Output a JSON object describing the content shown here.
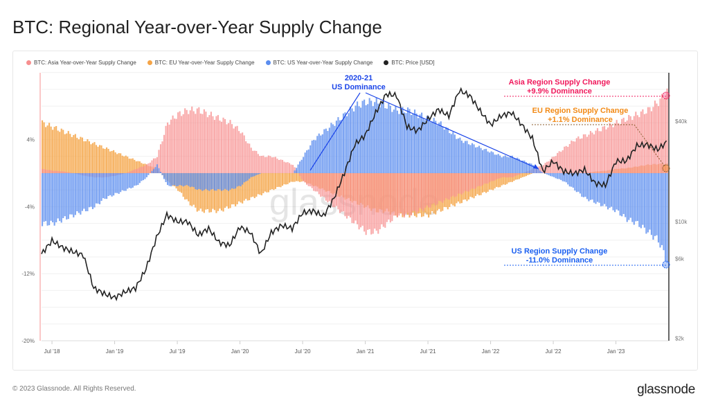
{
  "title": "BTC: Regional Year-over-Year Supply Change",
  "footer": "© 2023 Glassnode. All Rights Reserved.",
  "logo": "glassnode",
  "watermark": "glassnode",
  "legend": [
    {
      "label": "BTC: Asia Year-over-Year Supply Change",
      "color": "#f78f8f"
    },
    {
      "label": "BTC: EU Year-over-Year Supply Change",
      "color": "#f5a447"
    },
    {
      "label": "BTC: US Year-over-Year Supply Change",
      "color": "#5b8def"
    },
    {
      "label": "BTC: Price [USD]",
      "color": "#222222"
    }
  ],
  "annotations": {
    "us_dominance": {
      "line1": "2020-21",
      "line2": "US Dominance",
      "color": "#1a44e8"
    },
    "asia": {
      "line1": "Asia Region Supply Change",
      "line2": "+9.9% Dominance",
      "color": "#f0195c"
    },
    "eu": {
      "line1": "EU Region Supply Change",
      "line2": "+1.1% Dominance",
      "color": "#f28a16"
    },
    "us": {
      "line1": "US Region Supply Change",
      "line2": "-11.0% Dominance",
      "color": "#1a5ff0"
    }
  },
  "chart_data": {
    "type": "bar",
    "x_start": "2018-06",
    "x_step": "month",
    "x_ticks": [
      "Jul '18",
      "Jan '19",
      "Jul '19",
      "Jan '20",
      "Jul '20",
      "Jan '21",
      "Jul '21",
      "Jan '22",
      "Jul '22",
      "Jan '23"
    ],
    "y_left": {
      "ticks": [
        "4%",
        "-4%",
        "-12%",
        "-20%"
      ],
      "tick_values": [
        4,
        -4,
        -12,
        -20
      ],
      "range": [
        -20,
        12
      ],
      "unit": "%"
    },
    "y_right": {
      "ticks": [
        "$40k",
        "$10k",
        "$6k",
        "$2k"
      ],
      "tick_values": [
        40000,
        10000,
        6000,
        2000
      ],
      "scale": "log",
      "range": [
        2000,
        90000
      ]
    },
    "grid": true,
    "legend_placement": "top-left",
    "series": [
      {
        "name": "BTC: Asia Year-over-Year Supply Change",
        "axis": "left",
        "color": "#f78f8f",
        "values": [
          0.5,
          0.3,
          0.2,
          0,
          -0.3,
          -0.5,
          -0.5,
          -0.3,
          0,
          0.5,
          1,
          2,
          6,
          7,
          7.5,
          7.5,
          7,
          6.5,
          6,
          5,
          3,
          2,
          2,
          1.5,
          1,
          -1,
          -2,
          -3,
          -4,
          -5,
          -6,
          -7,
          -7,
          -6,
          -5,
          -5,
          -4.5,
          -4,
          -3.5,
          -3,
          -2.5,
          -2,
          -1.5,
          -1,
          -0.5,
          -0.5,
          0,
          0.5,
          1,
          2,
          3,
          4,
          4.5,
          5,
          5.5,
          6,
          6.5,
          7,
          7.5,
          8.5,
          9.9
        ]
      },
      {
        "name": "BTC: EU Year-over-Year Supply Change",
        "axis": "left",
        "color": "#f5a447",
        "values": [
          6,
          5.5,
          5,
          4.5,
          4,
          3.5,
          3,
          2.5,
          2,
          1.5,
          1,
          0.5,
          -1,
          -2,
          -3.5,
          -4.5,
          -4.5,
          -4.5,
          -4,
          -3.5,
          -3,
          -2.5,
          -2,
          -1.5,
          -1,
          -1,
          -1.5,
          -2,
          -2.5,
          -3,
          -3.5,
          -4,
          -4.5,
          -4.5,
          -5,
          -5,
          -5,
          -5,
          -4.5,
          -4,
          -3.5,
          -3,
          -2.5,
          -2,
          -1.5,
          -1,
          -0.5,
          0,
          0,
          0,
          0,
          0,
          0,
          0.2,
          0.3,
          0.5,
          0.6,
          0.8,
          1,
          1.1,
          1.1
        ]
      },
      {
        "name": "BTC: US Year-over-Year Supply Change",
        "axis": "left",
        "color": "#5b8def",
        "values": [
          -6,
          -6,
          -5.5,
          -5,
          -4.5,
          -4,
          -3,
          -2.5,
          -2,
          -1.5,
          -0.5,
          1,
          -1.5,
          -1.5,
          -1.5,
          -2,
          -2,
          -2,
          -2,
          -1.5,
          -0.5,
          0,
          0,
          0,
          0,
          2,
          4,
          5,
          6,
          7,
          8,
          8.5,
          8.5,
          8,
          7.5,
          7.5,
          7,
          6.5,
          6,
          5,
          4,
          3.5,
          3,
          2.5,
          2,
          2,
          1.5,
          1,
          0,
          -0.5,
          -1,
          -2,
          -3,
          -3.5,
          -4,
          -4.5,
          -5.5,
          -6,
          -7,
          -8,
          -11
        ]
      },
      {
        "name": "BTC: Price [USD]",
        "axis": "right",
        "type": "line",
        "color": "#222222",
        "values": [
          6400,
          7700,
          7000,
          6600,
          6300,
          4000,
          3700,
          3500,
          3800,
          4000,
          5200,
          8000,
          11000,
          10000,
          10000,
          8300,
          9100,
          7500,
          7200,
          9300,
          8600,
          6400,
          8600,
          9500,
          9100,
          11300,
          11600,
          10800,
          13800,
          19600,
          29000,
          33000,
          45000,
          58000,
          57000,
          37000,
          35000,
          41000,
          47000,
          43000,
          61000,
          57000,
          46000,
          38000,
          43000,
          45000,
          38000,
          31500,
          20000,
          23000,
          20000,
          19400,
          20500,
          17000,
          16500,
          23000,
          23100,
          28500,
          29000,
          27000,
          30500
        ]
      }
    ]
  }
}
